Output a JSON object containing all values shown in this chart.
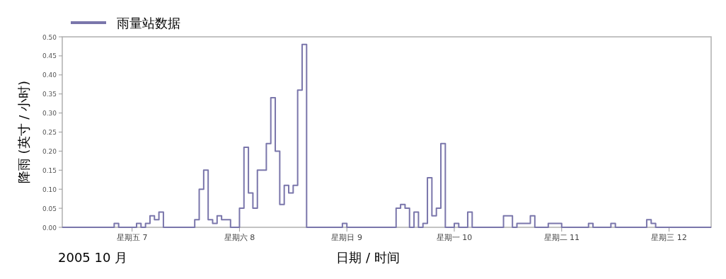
{
  "chart_data": {
    "type": "step",
    "xlabel": "日期 / 时间",
    "ylabel": "降雨 (英寸 / 小时)",
    "annotations": [
      "2005 10 月"
    ],
    "legend": "top left",
    "xlim": [
      "2005-10-06T20:24",
      "2005-10-12T21:24"
    ],
    "xticks": [
      {
        "value": "2005-10-07T12:00",
        "label": "星期五 7"
      },
      {
        "value": "2005-10-08T12:00",
        "label": "星期六 8"
      },
      {
        "value": "2005-10-09T12:00",
        "label": "星期日 9"
      },
      {
        "value": "2005-10-10T12:00",
        "label": "星期一 10"
      },
      {
        "value": "2005-10-11T12:00",
        "label": "星期二 11"
      },
      {
        "value": "2005-10-12T12:00",
        "label": "星期三 12"
      }
    ],
    "ylim": [
      0,
      0.5
    ],
    "yticks": [
      {
        "value": 0,
        "label": "0.00"
      },
      {
        "value": 0.05,
        "label": "0.05"
      },
      {
        "value": 0.1,
        "label": "0.10"
      },
      {
        "value": 0.15,
        "label": "0.15"
      },
      {
        "value": 0.2,
        "label": "0.20"
      },
      {
        "value": 0.25,
        "label": "0.25"
      },
      {
        "value": 0.3,
        "label": "0.30"
      },
      {
        "value": 0.35,
        "label": "0.35"
      },
      {
        "value": 0.4,
        "label": "0.40"
      },
      {
        "value": 0.45,
        "label": "0.45"
      },
      {
        "value": 0.5,
        "label": "0.50"
      }
    ],
    "series": [
      {
        "name": "雨量站数据",
        "color": "#7a76ab",
        "x": [
          "2005-10-06T20:24",
          "2005-10-07T08:00",
          "2005-10-07T09:00",
          "2005-10-07T13:00",
          "2005-10-07T14:00",
          "2005-10-07T15:00",
          "2005-10-07T16:00",
          "2005-10-07T17:00",
          "2005-10-07T18:00",
          "2005-10-07T19:00",
          "2005-10-08T02:00",
          "2005-10-08T03:00",
          "2005-10-08T04:00",
          "2005-10-08T05:00",
          "2005-10-08T06:00",
          "2005-10-08T07:00",
          "2005-10-08T08:00",
          "2005-10-08T10:00",
          "2005-10-08T12:00",
          "2005-10-08T13:00",
          "2005-10-08T14:00",
          "2005-10-08T15:00",
          "2005-10-08T16:00",
          "2005-10-08T18:00",
          "2005-10-08T19:00",
          "2005-10-08T20:00",
          "2005-10-08T21:00",
          "2005-10-08T22:00",
          "2005-10-08T23:00",
          "2005-10-09T00:00",
          "2005-10-09T01:00",
          "2005-10-09T02:00",
          "2005-10-09T03:00",
          "2005-10-09T11:00",
          "2005-10-09T12:00",
          "2005-10-09T23:00",
          "2005-10-10T00:00",
          "2005-10-10T01:00",
          "2005-10-10T02:00",
          "2005-10-10T03:00",
          "2005-10-10T04:00",
          "2005-10-10T05:00",
          "2005-10-10T06:00",
          "2005-10-10T07:00",
          "2005-10-10T08:00",
          "2005-10-10T09:00",
          "2005-10-10T10:00",
          "2005-10-10T12:00",
          "2005-10-10T13:00",
          "2005-10-10T15:00",
          "2005-10-10T16:00",
          "2005-10-10T23:00",
          "2005-10-11T01:00",
          "2005-10-11T02:00",
          "2005-10-11T05:00",
          "2005-10-11T06:00",
          "2005-10-11T09:00",
          "2005-10-11T12:00",
          "2005-10-11T18:00",
          "2005-10-11T19:00",
          "2005-10-11T23:00",
          "2005-10-12T00:00",
          "2005-10-12T07:00",
          "2005-10-12T08:00",
          "2005-10-12T09:00",
          "2005-10-12T21:24"
        ],
        "values": [
          0,
          0.01,
          0,
          0.01,
          0,
          0.01,
          0.03,
          0.02,
          0.04,
          0,
          0.02,
          0.1,
          0.15,
          0.02,
          0.01,
          0.03,
          0.02,
          0,
          0.05,
          0.21,
          0.09,
          0.05,
          0.15,
          0.22,
          0.34,
          0.2,
          0.06,
          0.11,
          0.09,
          0.11,
          0.36,
          0.48,
          0,
          0.01,
          0,
          0.05,
          0.06,
          0.05,
          0,
          0.04,
          0,
          0.01,
          0.13,
          0.03,
          0.05,
          0.22,
          0,
          0.01,
          0,
          0.04,
          0,
          0.03,
          0,
          0.01,
          0.03,
          0,
          0.01,
          0,
          0.01,
          0,
          0.01,
          0,
          0.02,
          0.01,
          0,
          0
        ]
      }
    ]
  }
}
